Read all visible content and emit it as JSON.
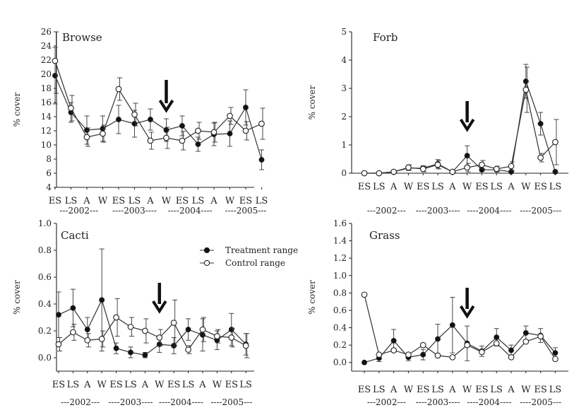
{
  "chart_data": [
    {
      "type": "line",
      "title": "Browse",
      "ylabel": "% cover",
      "ylim": [
        4,
        26
      ],
      "yticks": [
        4,
        6,
        8,
        10,
        12,
        14,
        16,
        18,
        20,
        22,
        24,
        26
      ],
      "categories": [
        "ES",
        "LS",
        "A",
        "W",
        "ES",
        "LS",
        "A",
        "W",
        "ES",
        "LS",
        "A",
        "W",
        "ES",
        "LS"
      ],
      "years": [
        {
          "label": "---2002---",
          "from": 0,
          "to": 3
        },
        {
          "label": "----2003----",
          "from": 4,
          "to": 6
        },
        {
          "label": "----2004----",
          "from": 7,
          "to": 10
        },
        {
          "label": "----2005---",
          "from": 11,
          "to": 13
        }
      ],
      "arrow_at": 7,
      "series": [
        {
          "name": "Treatment range",
          "marker": "filled",
          "values": [
            19.8,
            14.6,
            12.1,
            12.3,
            13.6,
            13.0,
            13.6,
            12.1,
            12.7,
            10.1,
            11.5,
            11.6,
            15.3,
            7.9
          ],
          "errors": [
            4.0,
            1.4,
            2.0,
            1.8,
            2.0,
            1.9,
            1.5,
            1.6,
            1.4,
            1.0,
            1.6,
            1.8,
            2.5,
            1.4
          ]
        },
        {
          "name": "Control range",
          "marker": "open",
          "values": [
            21.9,
            15.2,
            11.1,
            11.6,
            17.9,
            14.3,
            10.6,
            11.0,
            10.6,
            12.0,
            11.8,
            14.1,
            12.0,
            13.0
          ],
          "errors": [
            4.6,
            1.8,
            1.3,
            1.2,
            1.6,
            1.6,
            1.2,
            1.5,
            1.3,
            1.2,
            1.4,
            1.2,
            1.3,
            2.2
          ]
        }
      ]
    },
    {
      "type": "line",
      "title": "Forb",
      "ylabel": "% cover",
      "ylim": [
        0,
        5
      ],
      "yticks": [
        0,
        1,
        2,
        3,
        4,
        5
      ],
      "categories": [
        "ES",
        "LS",
        "A",
        "W",
        "ES",
        "LS",
        "A",
        "W",
        "ES",
        "LS",
        "A",
        "W",
        "ES",
        "LS"
      ],
      "years": [
        {
          "label": "---2002---",
          "from": 0,
          "to": 3
        },
        {
          "label": "----2003----",
          "from": 4,
          "to": 6
        },
        {
          "label": "----2004----",
          "from": 7,
          "to": 10
        },
        {
          "label": "----2005---",
          "from": 11,
          "to": 13
        }
      ],
      "arrow_at": 7,
      "series": [
        {
          "name": "Treatment range",
          "marker": "filled",
          "values": [
            0.0,
            0.0,
            0.05,
            0.18,
            0.18,
            0.33,
            0.05,
            0.62,
            0.12,
            0.12,
            0.05,
            3.25,
            1.75,
            0.05
          ],
          "errors": [
            0.0,
            0.0,
            0.03,
            0.08,
            0.08,
            0.15,
            0.03,
            0.35,
            0.05,
            0.05,
            0.03,
            0.6,
            0.4,
            0.05
          ]
        },
        {
          "name": "Control range",
          "marker": "open",
          "values": [
            0.0,
            0.0,
            0.05,
            0.2,
            0.15,
            0.3,
            0.05,
            0.2,
            0.3,
            0.15,
            0.25,
            2.95,
            0.55,
            1.1
          ],
          "errors": [
            0.0,
            0.0,
            0.03,
            0.1,
            0.1,
            0.15,
            0.03,
            0.15,
            0.15,
            0.1,
            0.15,
            0.8,
            0.15,
            0.8
          ]
        }
      ]
    },
    {
      "type": "line",
      "title": "Cacti",
      "ylabel": "% cover",
      "ylim": [
        -0.1,
        1.0
      ],
      "yticks": [
        0.0,
        0.2,
        0.4,
        0.6,
        0.8,
        1.0
      ],
      "ytick_labels": [
        "0.0",
        "0.2",
        "0.4",
        "0.6",
        "0.8",
        "1.0"
      ],
      "categories": [
        "ES",
        "LS",
        "A",
        "W",
        "ES",
        "LS",
        "A",
        "W",
        "ES",
        "LS",
        "A",
        "W",
        "ES",
        "LS"
      ],
      "years": [
        {
          "label": "---2002---",
          "from": 0,
          "to": 3
        },
        {
          "label": "----2003----",
          "from": 4,
          "to": 6
        },
        {
          "label": "----2004----",
          "from": 7,
          "to": 10
        },
        {
          "label": "----2005---",
          "from": 11,
          "to": 13
        }
      ],
      "arrow_at": 7,
      "legend": {
        "position": "top-right",
        "entries": [
          "Treatment range",
          "Control range"
        ]
      },
      "series": [
        {
          "name": "Treatment range",
          "marker": "filled",
          "values": [
            0.32,
            0.37,
            0.21,
            0.43,
            0.07,
            0.04,
            0.02,
            0.1,
            0.09,
            0.21,
            0.17,
            0.13,
            0.21,
            0.1
          ],
          "errors": [
            0.17,
            0.14,
            0.09,
            0.38,
            0.04,
            0.04,
            0.02,
            0.06,
            0.06,
            0.08,
            0.12,
            0.07,
            0.12,
            0.08
          ]
        },
        {
          "name": "Control range",
          "marker": "open",
          "values": [
            0.1,
            0.19,
            0.13,
            0.14,
            0.3,
            0.23,
            0.2,
            0.15,
            0.26,
            0.06,
            0.21,
            0.16,
            0.15,
            0.09
          ],
          "errors": [
            0.05,
            0.06,
            0.05,
            0.06,
            0.14,
            0.07,
            0.09,
            0.06,
            0.17,
            0.03,
            0.09,
            0.05,
            0.07,
            0.09
          ]
        }
      ]
    },
    {
      "type": "line",
      "title": "Grass",
      "ylabel": "% cover",
      "ylim": [
        -0.1,
        1.6
      ],
      "yticks": [
        0.0,
        0.2,
        0.4,
        0.6,
        0.8,
        1.0,
        1.2,
        1.4,
        1.6
      ],
      "ytick_labels": [
        "0.0",
        "0.2",
        "0.4",
        "0.6",
        "0.8",
        "1.0",
        "1.2",
        "1.4",
        "1.6"
      ],
      "categories": [
        "ES",
        "LS",
        "A",
        "W",
        "ES",
        "LS",
        "A",
        "W",
        "ES",
        "LS",
        "A",
        "W",
        "ES",
        "LS"
      ],
      "years": [
        {
          "label": "---2002---",
          "from": 0,
          "to": 3
        },
        {
          "label": "----2003----",
          "from": 4,
          "to": 6
        },
        {
          "label": "----2004----",
          "from": 7,
          "to": 10
        },
        {
          "label": "----2005---",
          "from": 11,
          "to": 13
        }
      ],
      "arrow_at": 7,
      "series": [
        {
          "name": "Treatment range",
          "marker": "filled",
          "values": [
            0.0,
            0.05,
            0.25,
            0.06,
            0.09,
            0.27,
            0.43,
            0.22,
            0.13,
            0.29,
            0.14,
            0.34,
            0.31,
            0.11
          ],
          "errors": [
            0.0,
            0.04,
            0.13,
            0.04,
            0.06,
            0.17,
            0.32,
            0.2,
            0.06,
            0.1,
            0.06,
            0.08,
            0.08,
            0.06
          ]
        },
        {
          "name": "Control range",
          "marker": "open",
          "values": [
            0.78,
            0.09,
            0.14,
            0.09,
            0.2,
            0.08,
            0.06,
            0.2,
            0.12,
            0.22,
            0.06,
            0.24,
            0.3,
            0.04
          ]
        }
      ]
    }
  ]
}
